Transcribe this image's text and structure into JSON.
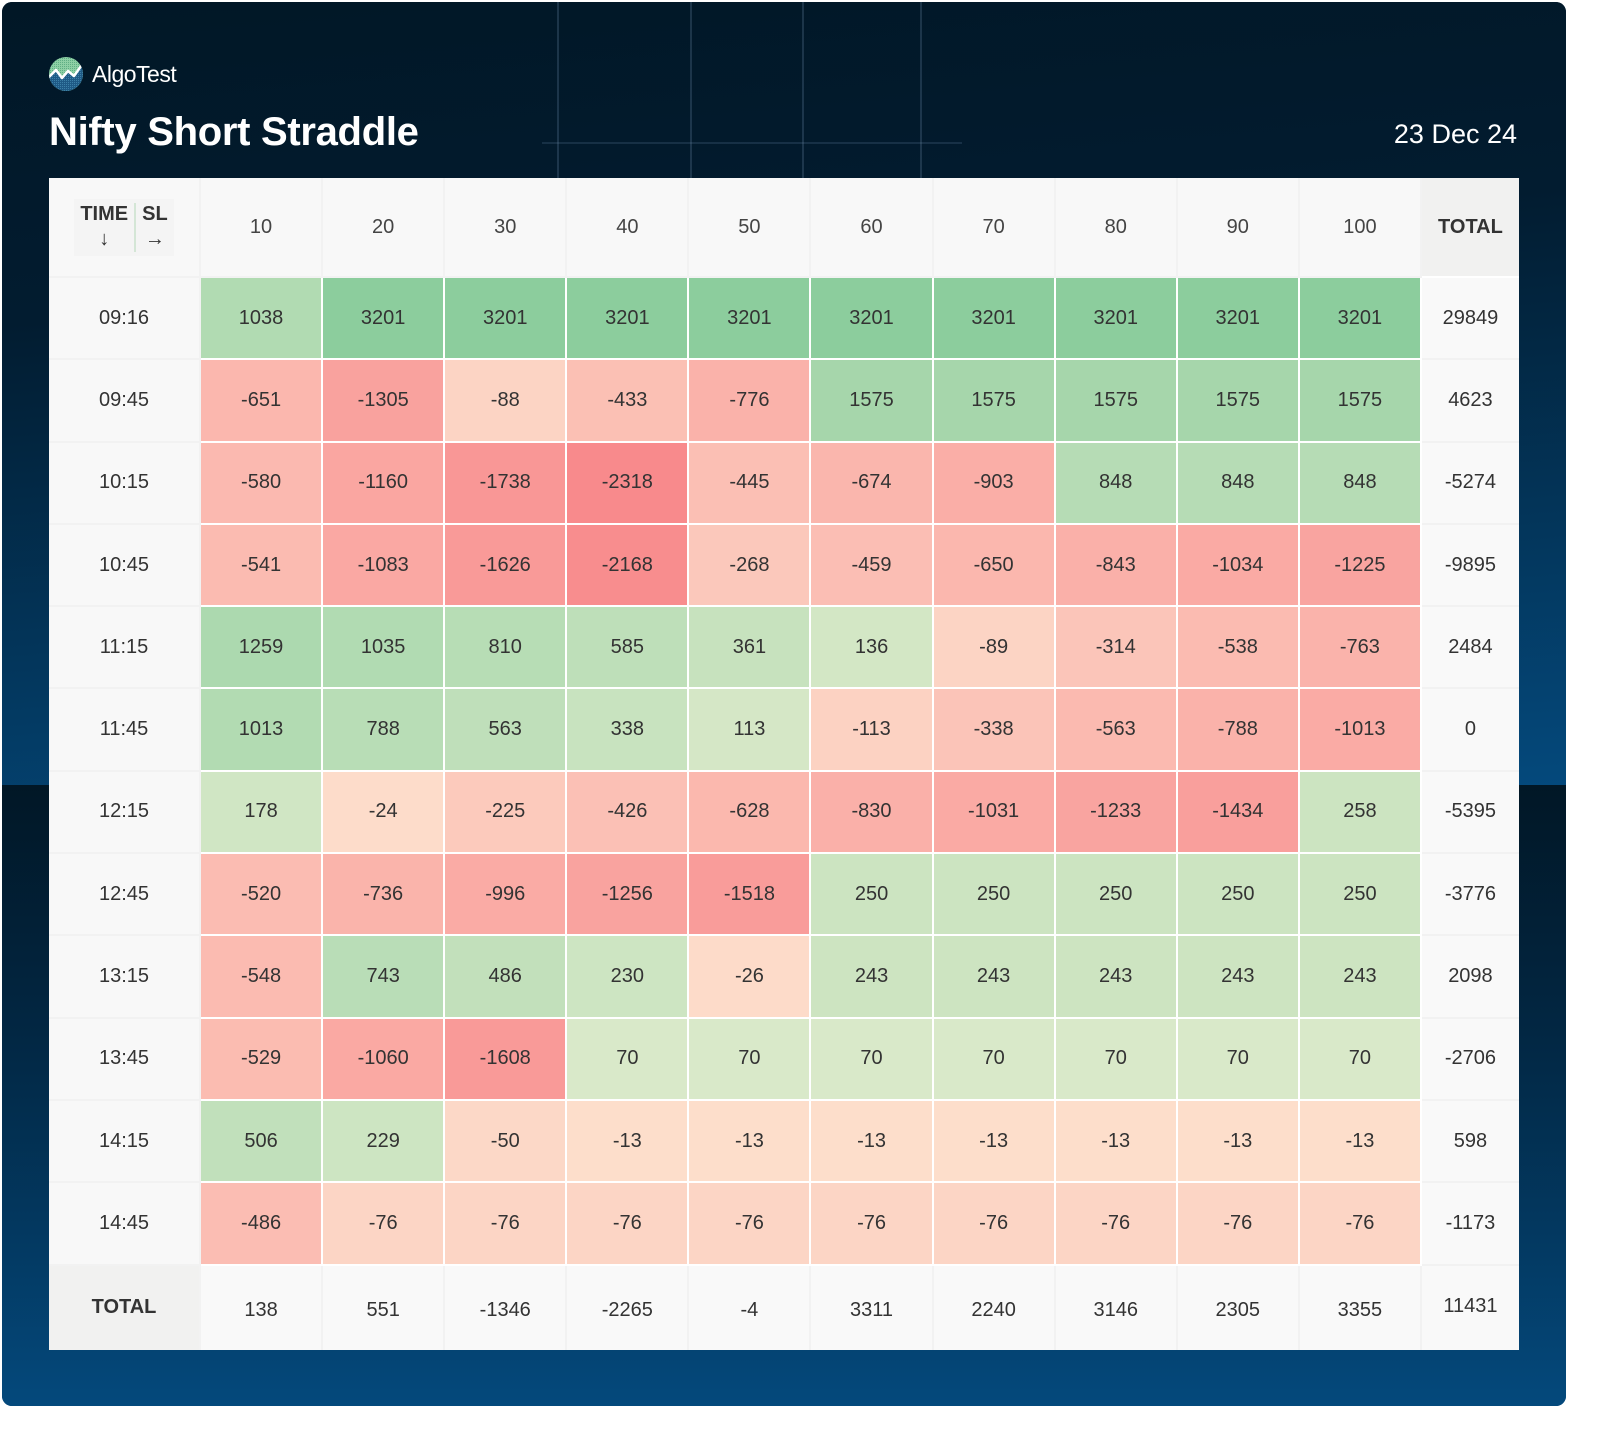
{
  "brand": {
    "name": "AlgoTest",
    "logo_icon": "algotest-logo-icon"
  },
  "header": {
    "title": "Nifty Short Straddle",
    "date": "23 Dec 24"
  },
  "palette": {
    "positive_strong": "#8ccd9d",
    "positive_weak": "#eaefd2",
    "negative_weak": "#fde3cf",
    "negative_strong": "#f88a8c"
  },
  "table": {
    "corner": {
      "row_axis_label": "TIME",
      "row_axis_arrow": "↓",
      "col_axis_label": "SL",
      "col_axis_arrow": "→"
    },
    "columns": [
      "10",
      "20",
      "30",
      "40",
      "50",
      "60",
      "70",
      "80",
      "90",
      "100"
    ],
    "total_label": "TOTAL",
    "rows": [
      {
        "time": "09:16",
        "values": [
          1038,
          3201,
          3201,
          3201,
          3201,
          3201,
          3201,
          3201,
          3201,
          3201
        ],
        "total": "29849"
      },
      {
        "time": "09:45",
        "values": [
          -651,
          -1305,
          -88,
          -433,
          -776,
          1575,
          1575,
          1575,
          1575,
          1575
        ],
        "total": "4623"
      },
      {
        "time": "10:15",
        "values": [
          -580,
          -1160,
          -1738,
          -2318,
          -445,
          -674,
          -903,
          848,
          848,
          848
        ],
        "total": "-5274"
      },
      {
        "time": "10:45",
        "values": [
          -541,
          -1083,
          -1626,
          -2168,
          -268,
          -459,
          -650,
          -843,
          -1034,
          -1225
        ],
        "total": "-9895"
      },
      {
        "time": "11:15",
        "values": [
          1259,
          1035,
          810,
          585,
          361,
          136,
          -89,
          -314,
          -538,
          -763
        ],
        "total": "2484"
      },
      {
        "time": "11:45",
        "values": [
          1013,
          788,
          563,
          338,
          113,
          -113,
          -338,
          -563,
          -788,
          -1013
        ],
        "total": "0"
      },
      {
        "time": "12:15",
        "values": [
          178,
          -24,
          -225,
          -426,
          -628,
          -830,
          -1031,
          -1233,
          -1434,
          258
        ],
        "total": "-5395"
      },
      {
        "time": "12:45",
        "values": [
          -520,
          -736,
          -996,
          -1256,
          -1518,
          250,
          250,
          250,
          250,
          250
        ],
        "total": "-3776"
      },
      {
        "time": "13:15",
        "values": [
          -548,
          743,
          486,
          230,
          -26,
          243,
          243,
          243,
          243,
          243
        ],
        "total": "2098"
      },
      {
        "time": "13:45",
        "values": [
          -529,
          -1060,
          -1608,
          70,
          70,
          70,
          70,
          70,
          70,
          70
        ],
        "total": "-2706"
      },
      {
        "time": "14:15",
        "values": [
          506,
          229,
          -50,
          -13,
          -13,
          -13,
          -13,
          -13,
          -13,
          -13
        ],
        "total": "598"
      },
      {
        "time": "14:45",
        "values": [
          -486,
          -76,
          -76,
          -76,
          -76,
          -76,
          -76,
          -76,
          -76,
          -76
        ],
        "total": "-1173"
      }
    ],
    "column_totals": [
      "138",
      "551",
      "-1346",
      "-2265",
      "-4",
      "3311",
      "2240",
      "3146",
      "2305",
      "3355"
    ],
    "grand_total": "11431"
  }
}
